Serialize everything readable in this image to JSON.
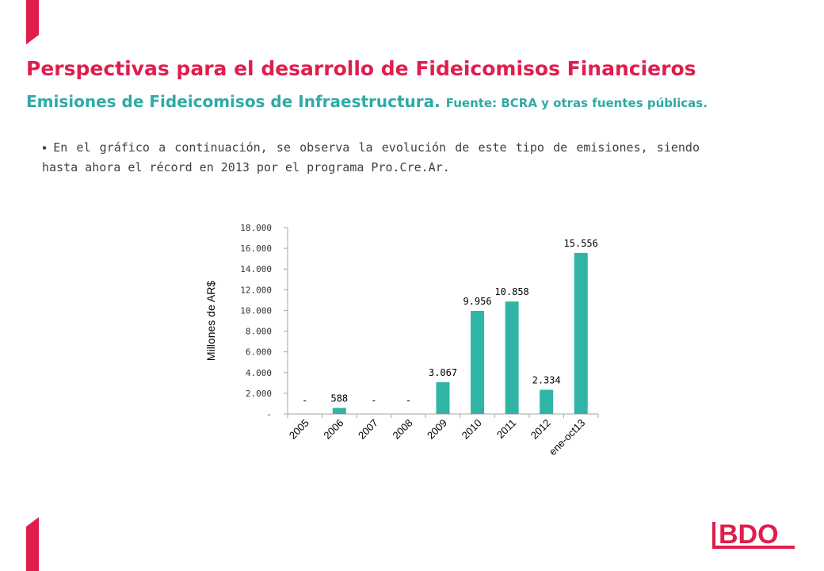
{
  "slide": {
    "title": "Perspectivas para el desarrollo de Fideicomisos Financieros",
    "subtitle_main": "Emisiones de Fideicomisos de Infraestructura.",
    "subtitle_source": "Fuente: BCRA y otras fuentes públicas.",
    "bullet_mark": "▪",
    "bullet_text": "En el gráfico a continuación, se observa la evolución de este tipo de emisiones, siendo hasta ahora el récord en 2013 por el programa Pro.Cre.Ar.",
    "logo_text": "BDO"
  },
  "colors": {
    "title": "#e01e4e",
    "subtitle": "#2faaa5",
    "accent": "#e01e4e",
    "bar": "#2fb5a5",
    "logo": "#e01e4e"
  },
  "chart_data": {
    "type": "bar",
    "title": "",
    "xlabel": "",
    "ylabel": "Millones de AR$",
    "categories": [
      "2005",
      "2006",
      "2007",
      "2008",
      "2009",
      "2010",
      "2011",
      "2012",
      "ene-oct13"
    ],
    "values": [
      0,
      588,
      0,
      0,
      3067,
      9956,
      10858,
      2334,
      15556
    ],
    "data_labels": [
      "-",
      "588",
      "-",
      "-",
      "3.067",
      "9.956",
      "10.858",
      "2.334",
      "15.556"
    ],
    "y_ticks": [
      0,
      2000,
      4000,
      6000,
      8000,
      10000,
      12000,
      14000,
      16000,
      18000
    ],
    "y_tick_labels": [
      "-",
      "2.000",
      "4.000",
      "6.000",
      "8.000",
      "10.000",
      "12.000",
      "14.000",
      "16.000",
      "18.000"
    ],
    "ylim": [
      0,
      18000
    ],
    "grid": false,
    "legend": "none"
  }
}
